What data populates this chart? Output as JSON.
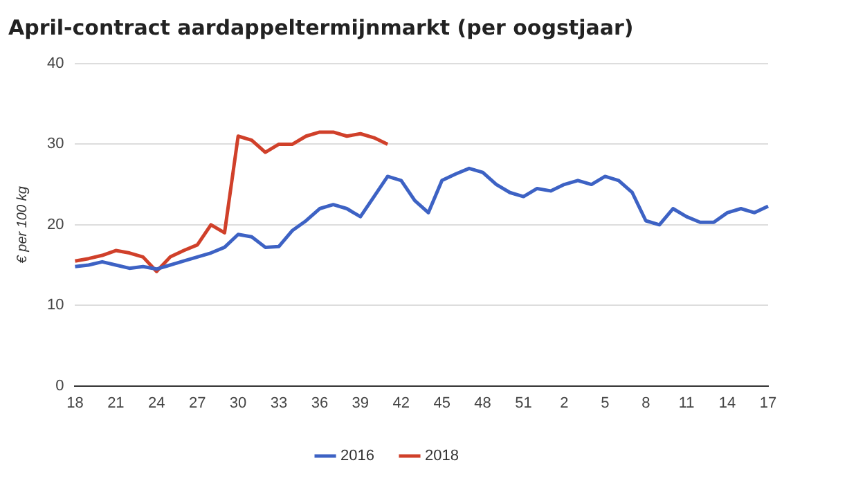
{
  "chart_data": {
    "type": "line",
    "title": "April-contract aardappeltermijnmarkt (per oogstjaar)",
    "ylabel": "€ per 100 kg",
    "categories": [
      "18",
      null,
      null,
      "21",
      null,
      null,
      "24",
      null,
      null,
      "27",
      null,
      null,
      "30",
      null,
      null,
      "33",
      null,
      null,
      "36",
      null,
      null,
      "39",
      null,
      null,
      "42",
      null,
      null,
      "45",
      null,
      null,
      "48",
      null,
      null,
      "51",
      null,
      null,
      "2",
      null,
      null,
      "5",
      null,
      null,
      "8",
      null,
      null,
      "11",
      null,
      null,
      "14",
      null,
      null,
      "17"
    ],
    "series": [
      {
        "name": "2016",
        "color": "#3d62c4",
        "values": [
          14.8,
          15.0,
          15.4,
          15.0,
          14.6,
          14.8,
          14.5,
          15.0,
          15.5,
          16.0,
          16.5,
          17.2,
          18.8,
          18.5,
          17.2,
          17.3,
          19.3,
          20.5,
          22.0,
          22.5,
          22.0,
          21.0,
          23.5,
          26.0,
          25.5,
          23.0,
          21.5,
          25.5,
          26.3,
          27.0,
          26.5,
          25.0,
          24.0,
          23.5,
          24.5,
          24.2,
          25.0,
          25.5,
          25.0,
          26.0,
          25.5,
          24.0,
          20.5,
          20.0,
          22.0,
          21.0,
          20.3,
          20.3,
          21.5,
          22.0,
          21.5,
          22.3
        ]
      },
      {
        "name": "2018",
        "color": "#d0402a",
        "values": [
          15.5,
          15.8,
          16.2,
          16.8,
          16.5,
          16.0,
          14.2,
          16.0,
          16.8,
          17.5,
          20.0,
          19.0,
          31.0,
          30.5,
          29.0,
          30.0,
          30.0,
          31.0,
          31.5,
          31.5,
          31.0,
          31.3,
          30.8,
          30.0,
          null,
          null,
          null,
          null,
          null,
          null,
          null,
          null,
          null,
          null,
          null,
          null,
          null,
          null,
          null,
          null,
          null,
          null,
          null,
          null,
          null,
          null,
          null,
          null,
          null,
          null,
          null,
          null
        ]
      }
    ],
    "ylim": [
      0,
      40
    ],
    "yticks": [
      0,
      10,
      20,
      30,
      40
    ],
    "grid": "y",
    "legend": "bottom",
    "marker": "none",
    "line_style": "solid"
  }
}
